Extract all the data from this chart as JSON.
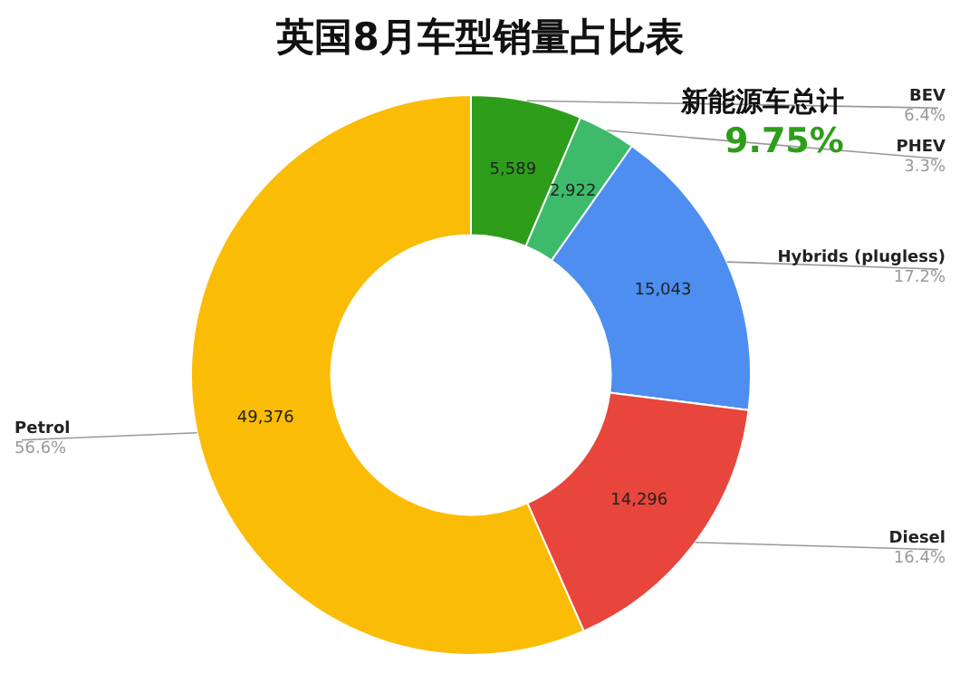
{
  "chart_data": {
    "type": "donut",
    "title": "英国8月车型销量占比表",
    "categories": [
      "BEV",
      "PHEV",
      "Hybrids (plugless)",
      "Diesel",
      "Petrol"
    ],
    "values": [
      5589,
      2922,
      15043,
      14296,
      49376
    ],
    "colors": [
      "#2e9e1a",
      "#3dbb6a",
      "#4d8ef0",
      "#e8453c",
      "#fbbc05"
    ],
    "value_labels": [
      "5,589",
      "2,922",
      "15,043",
      "14,296",
      "49,376"
    ],
    "annotations": [
      "新能源车总计",
      "9.75%",
      "6.4%",
      "3.3%",
      "17.2%",
      "16.4%",
      "56.6%"
    ],
    "legend": false
  }
}
